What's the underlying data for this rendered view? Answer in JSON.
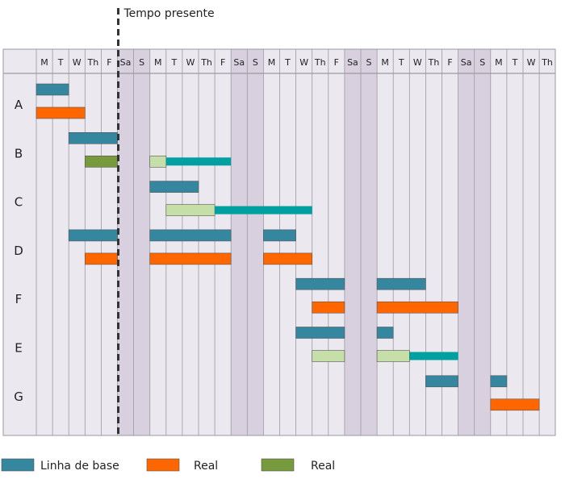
{
  "chart_data": {
    "type": "gantt",
    "title": "",
    "marker": {
      "label": "Tempo presente",
      "after_day": 5
    },
    "days": [
      "M",
      "T",
      "W",
      "Th",
      "F",
      "Sa",
      "S",
      "M",
      "T",
      "W",
      "Th",
      "F",
      "Sa",
      "S",
      "M",
      "T",
      "W",
      "Th",
      "F",
      "Sa",
      "S",
      "M",
      "T",
      "W",
      "Th",
      "F",
      "Sa",
      "S",
      "M",
      "T",
      "W",
      "Th"
    ],
    "rows": [
      "A",
      "B",
      "C",
      "D",
      "F",
      "E",
      "G"
    ],
    "colors": {
      "baseline": "#35869f",
      "actual": "#ff6600",
      "actual_done": "#779a3d",
      "planned_light": "#c6dea8",
      "remaining": "#00a0a0",
      "weekend": "#d8d0de",
      "weekday": "#ece8f0",
      "grid": "#9a9aa0"
    },
    "legend": [
      {
        "label": "Linha de base",
        "color": "#35869f"
      },
      {
        "label": "Real",
        "color": "#ff6600"
      },
      {
        "label": "Real",
        "color": "#779a3d"
      }
    ],
    "bars": [
      {
        "row": "A",
        "lane": 0,
        "kind": "baseline",
        "start": 0,
        "end": 2
      },
      {
        "row": "A",
        "lane": 1,
        "kind": "actual",
        "start": 0,
        "end": 3
      },
      {
        "row": "B",
        "lane": 0,
        "kind": "baseline",
        "start": 2,
        "end": 5
      },
      {
        "row": "B",
        "lane": 1,
        "kind": "actual_done",
        "start": 3,
        "end": 5
      },
      {
        "row": "B",
        "lane": 1,
        "kind": "planned_light",
        "start": 7,
        "end": 8
      },
      {
        "row": "B",
        "lane": 1,
        "kind": "remaining",
        "start": 8,
        "end": 12
      },
      {
        "row": "C",
        "lane": 0,
        "kind": "baseline",
        "start": 7,
        "end": 10
      },
      {
        "row": "C",
        "lane": 1,
        "kind": "planned_light",
        "start": 8,
        "end": 11
      },
      {
        "row": "C",
        "lane": 1,
        "kind": "remaining",
        "start": 11,
        "end": 17
      },
      {
        "row": "D",
        "lane": 0,
        "kind": "baseline",
        "start": 2,
        "end": 5
      },
      {
        "row": "D",
        "lane": 0,
        "kind": "baseline",
        "start": 7,
        "end": 12
      },
      {
        "row": "D",
        "lane": 0,
        "kind": "baseline",
        "start": 14,
        "end": 16
      },
      {
        "row": "D",
        "lane": 1,
        "kind": "actual",
        "start": 3,
        "end": 5
      },
      {
        "row": "D",
        "lane": 1,
        "kind": "actual",
        "start": 7,
        "end": 12
      },
      {
        "row": "D",
        "lane": 1,
        "kind": "actual",
        "start": 14,
        "end": 17
      },
      {
        "row": "F",
        "lane": 0,
        "kind": "baseline",
        "start": 16,
        "end": 19
      },
      {
        "row": "F",
        "lane": 0,
        "kind": "baseline",
        "start": 21,
        "end": 24
      },
      {
        "row": "F",
        "lane": 1,
        "kind": "actual",
        "start": 17,
        "end": 19
      },
      {
        "row": "F",
        "lane": 1,
        "kind": "actual",
        "start": 21,
        "end": 26
      },
      {
        "row": "E",
        "lane": 0,
        "kind": "baseline",
        "start": 16,
        "end": 19
      },
      {
        "row": "E",
        "lane": 0,
        "kind": "baseline",
        "start": 21,
        "end": 22
      },
      {
        "row": "E",
        "lane": 1,
        "kind": "planned_light",
        "start": 17,
        "end": 19
      },
      {
        "row": "E",
        "lane": 1,
        "kind": "planned_light",
        "start": 21,
        "end": 23
      },
      {
        "row": "E",
        "lane": 1,
        "kind": "remaining",
        "start": 23,
        "end": 26
      },
      {
        "row": "G",
        "lane": 0,
        "kind": "baseline",
        "start": 24,
        "end": 26
      },
      {
        "row": "G",
        "lane": 0,
        "kind": "baseline",
        "start": 28,
        "end": 29
      },
      {
        "row": "G",
        "lane": 1,
        "kind": "actual",
        "start": 28,
        "end": 31
      }
    ]
  }
}
